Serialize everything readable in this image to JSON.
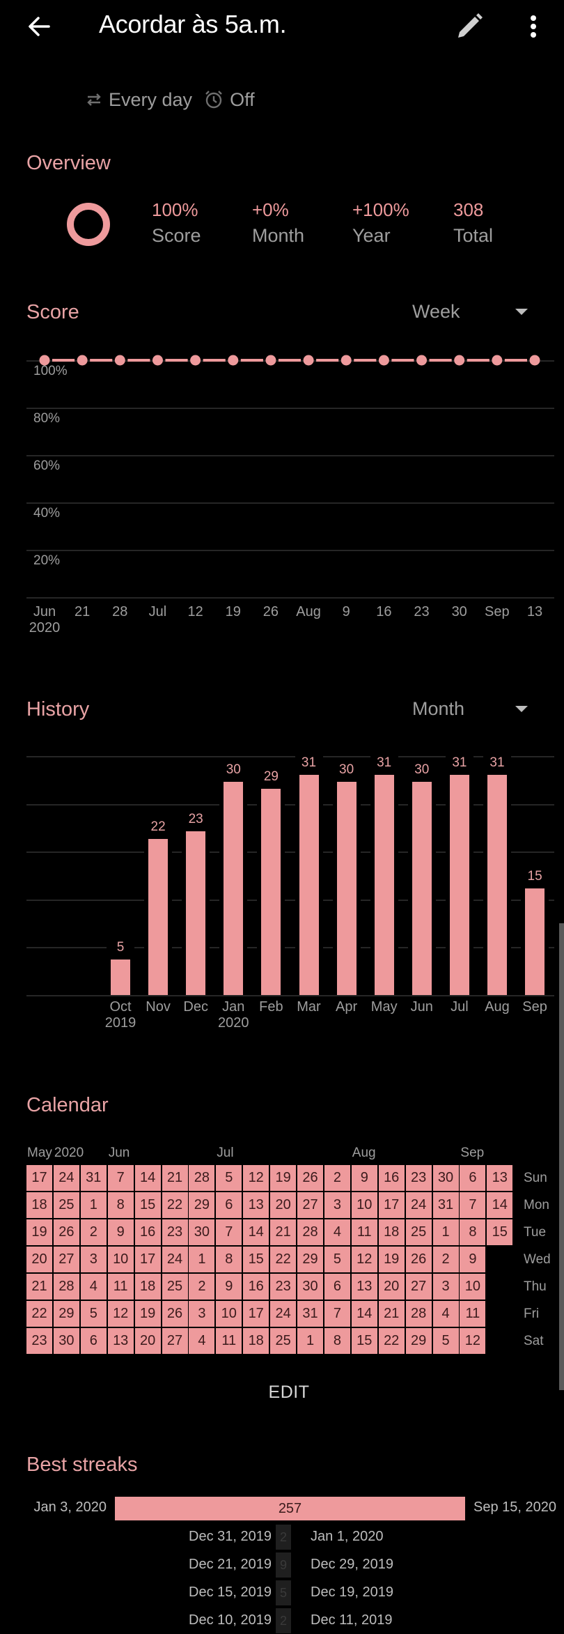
{
  "topbar": {
    "title": "Acordar às 5a.m.",
    "icons": [
      "arrow-back-icon",
      "pencil-icon",
      "more-vert-icon"
    ]
  },
  "subtitle": {
    "frequency": "Every day",
    "reminder": "Off",
    "icons": [
      "repeat-icon",
      "alarm-icon"
    ]
  },
  "overview": {
    "title": "Overview",
    "items": [
      {
        "value": "100%",
        "label": "Score"
      },
      {
        "value": "+0%",
        "label": "Month"
      },
      {
        "value": "+100%",
        "label": "Year"
      },
      {
        "value": "308",
        "label": "Total"
      }
    ]
  },
  "score": {
    "title": "Score",
    "period": "Week"
  },
  "history": {
    "title": "History",
    "period": "Month"
  },
  "calendar": {
    "title": "Calendar",
    "month_labels": [
      {
        "text": "May",
        "col": 0
      },
      {
        "text": "2020",
        "col": 1
      },
      {
        "text": "Jun",
        "col": 3
      },
      {
        "text": "Jul",
        "col": 7
      },
      {
        "text": "Aug",
        "col": 12
      },
      {
        "text": "Sep",
        "col": 16
      }
    ],
    "day_labels": [
      "Sun",
      "Mon",
      "Tue",
      "Wed",
      "Thu",
      "Fri",
      "Sat"
    ],
    "columns": [
      [
        17,
        18,
        19,
        20,
        21,
        22,
        23
      ],
      [
        24,
        25,
        26,
        27,
        28,
        29,
        30
      ],
      [
        31,
        1,
        2,
        3,
        4,
        5,
        6
      ],
      [
        7,
        8,
        9,
        10,
        11,
        12,
        13
      ],
      [
        14,
        15,
        16,
        17,
        18,
        19,
        20
      ],
      [
        21,
        22,
        23,
        24,
        25,
        26,
        27
      ],
      [
        28,
        29,
        30,
        1,
        2,
        3,
        4
      ],
      [
        5,
        6,
        7,
        8,
        9,
        10,
        11
      ],
      [
        12,
        13,
        14,
        15,
        16,
        17,
        18
      ],
      [
        19,
        20,
        21,
        22,
        23,
        24,
        25
      ],
      [
        26,
        27,
        28,
        29,
        30,
        31,
        1
      ],
      [
        2,
        3,
        4,
        5,
        6,
        7,
        8
      ],
      [
        9,
        10,
        11,
        12,
        13,
        14,
        15
      ],
      [
        16,
        17,
        18,
        19,
        20,
        21,
        22
      ],
      [
        23,
        24,
        25,
        26,
        27,
        28,
        29
      ],
      [
        30,
        31,
        1,
        2,
        3,
        4,
        5
      ],
      [
        6,
        7,
        8,
        9,
        10,
        11,
        12
      ],
      [
        13,
        14,
        15
      ]
    ],
    "edit_label": "EDIT"
  },
  "streaks": {
    "title": "Best streaks",
    "items": [
      {
        "start": "Jan 3, 2020",
        "length": "257",
        "end": "Sep 15, 2020"
      },
      {
        "start": "Dec 31, 2019",
        "length": "2",
        "end": "Jan 1, 2020"
      },
      {
        "start": "Dec 21, 2019",
        "length": "9",
        "end": "Dec 29, 2019"
      },
      {
        "start": "Dec 15, 2019",
        "length": "5",
        "end": "Dec 19, 2019"
      },
      {
        "start": "Dec 10, 2019",
        "length": "2",
        "end": "Dec 11, 2019"
      }
    ]
  },
  "colors": {
    "accent": "#ee9a9c",
    "accent_text": "#e8a3a5",
    "background": "#000000",
    "secondary_text": "#9e9e9e",
    "grid": "#262626"
  },
  "chart_data": [
    {
      "type": "line",
      "title": "Score",
      "x": [
        "Jun 2020",
        "21",
        "28",
        "Jul",
        "12",
        "19",
        "26",
        "Aug",
        "9",
        "16",
        "23",
        "30",
        "Sep",
        "13"
      ],
      "values": [
        100,
        100,
        100,
        100,
        100,
        100,
        100,
        100,
        100,
        100,
        100,
        100,
        100,
        100
      ],
      "y_ticks": [
        "100%",
        "80%",
        "60%",
        "40%",
        "20%"
      ],
      "ylim": [
        0,
        100
      ],
      "grid": true,
      "xlabel": "",
      "ylabel": ""
    },
    {
      "type": "bar",
      "title": "History",
      "categories": [
        "Oct 2019",
        "Nov",
        "Dec",
        "Jan 2020",
        "Feb",
        "Mar",
        "Apr",
        "May",
        "Jun",
        "Jul",
        "Aug",
        "Sep"
      ],
      "values": [
        5,
        22,
        23,
        30,
        29,
        31,
        30,
        31,
        30,
        31,
        31,
        15
      ],
      "ylim": [
        0,
        33
      ],
      "grid": true,
      "xlabel": "",
      "ylabel": ""
    }
  ]
}
